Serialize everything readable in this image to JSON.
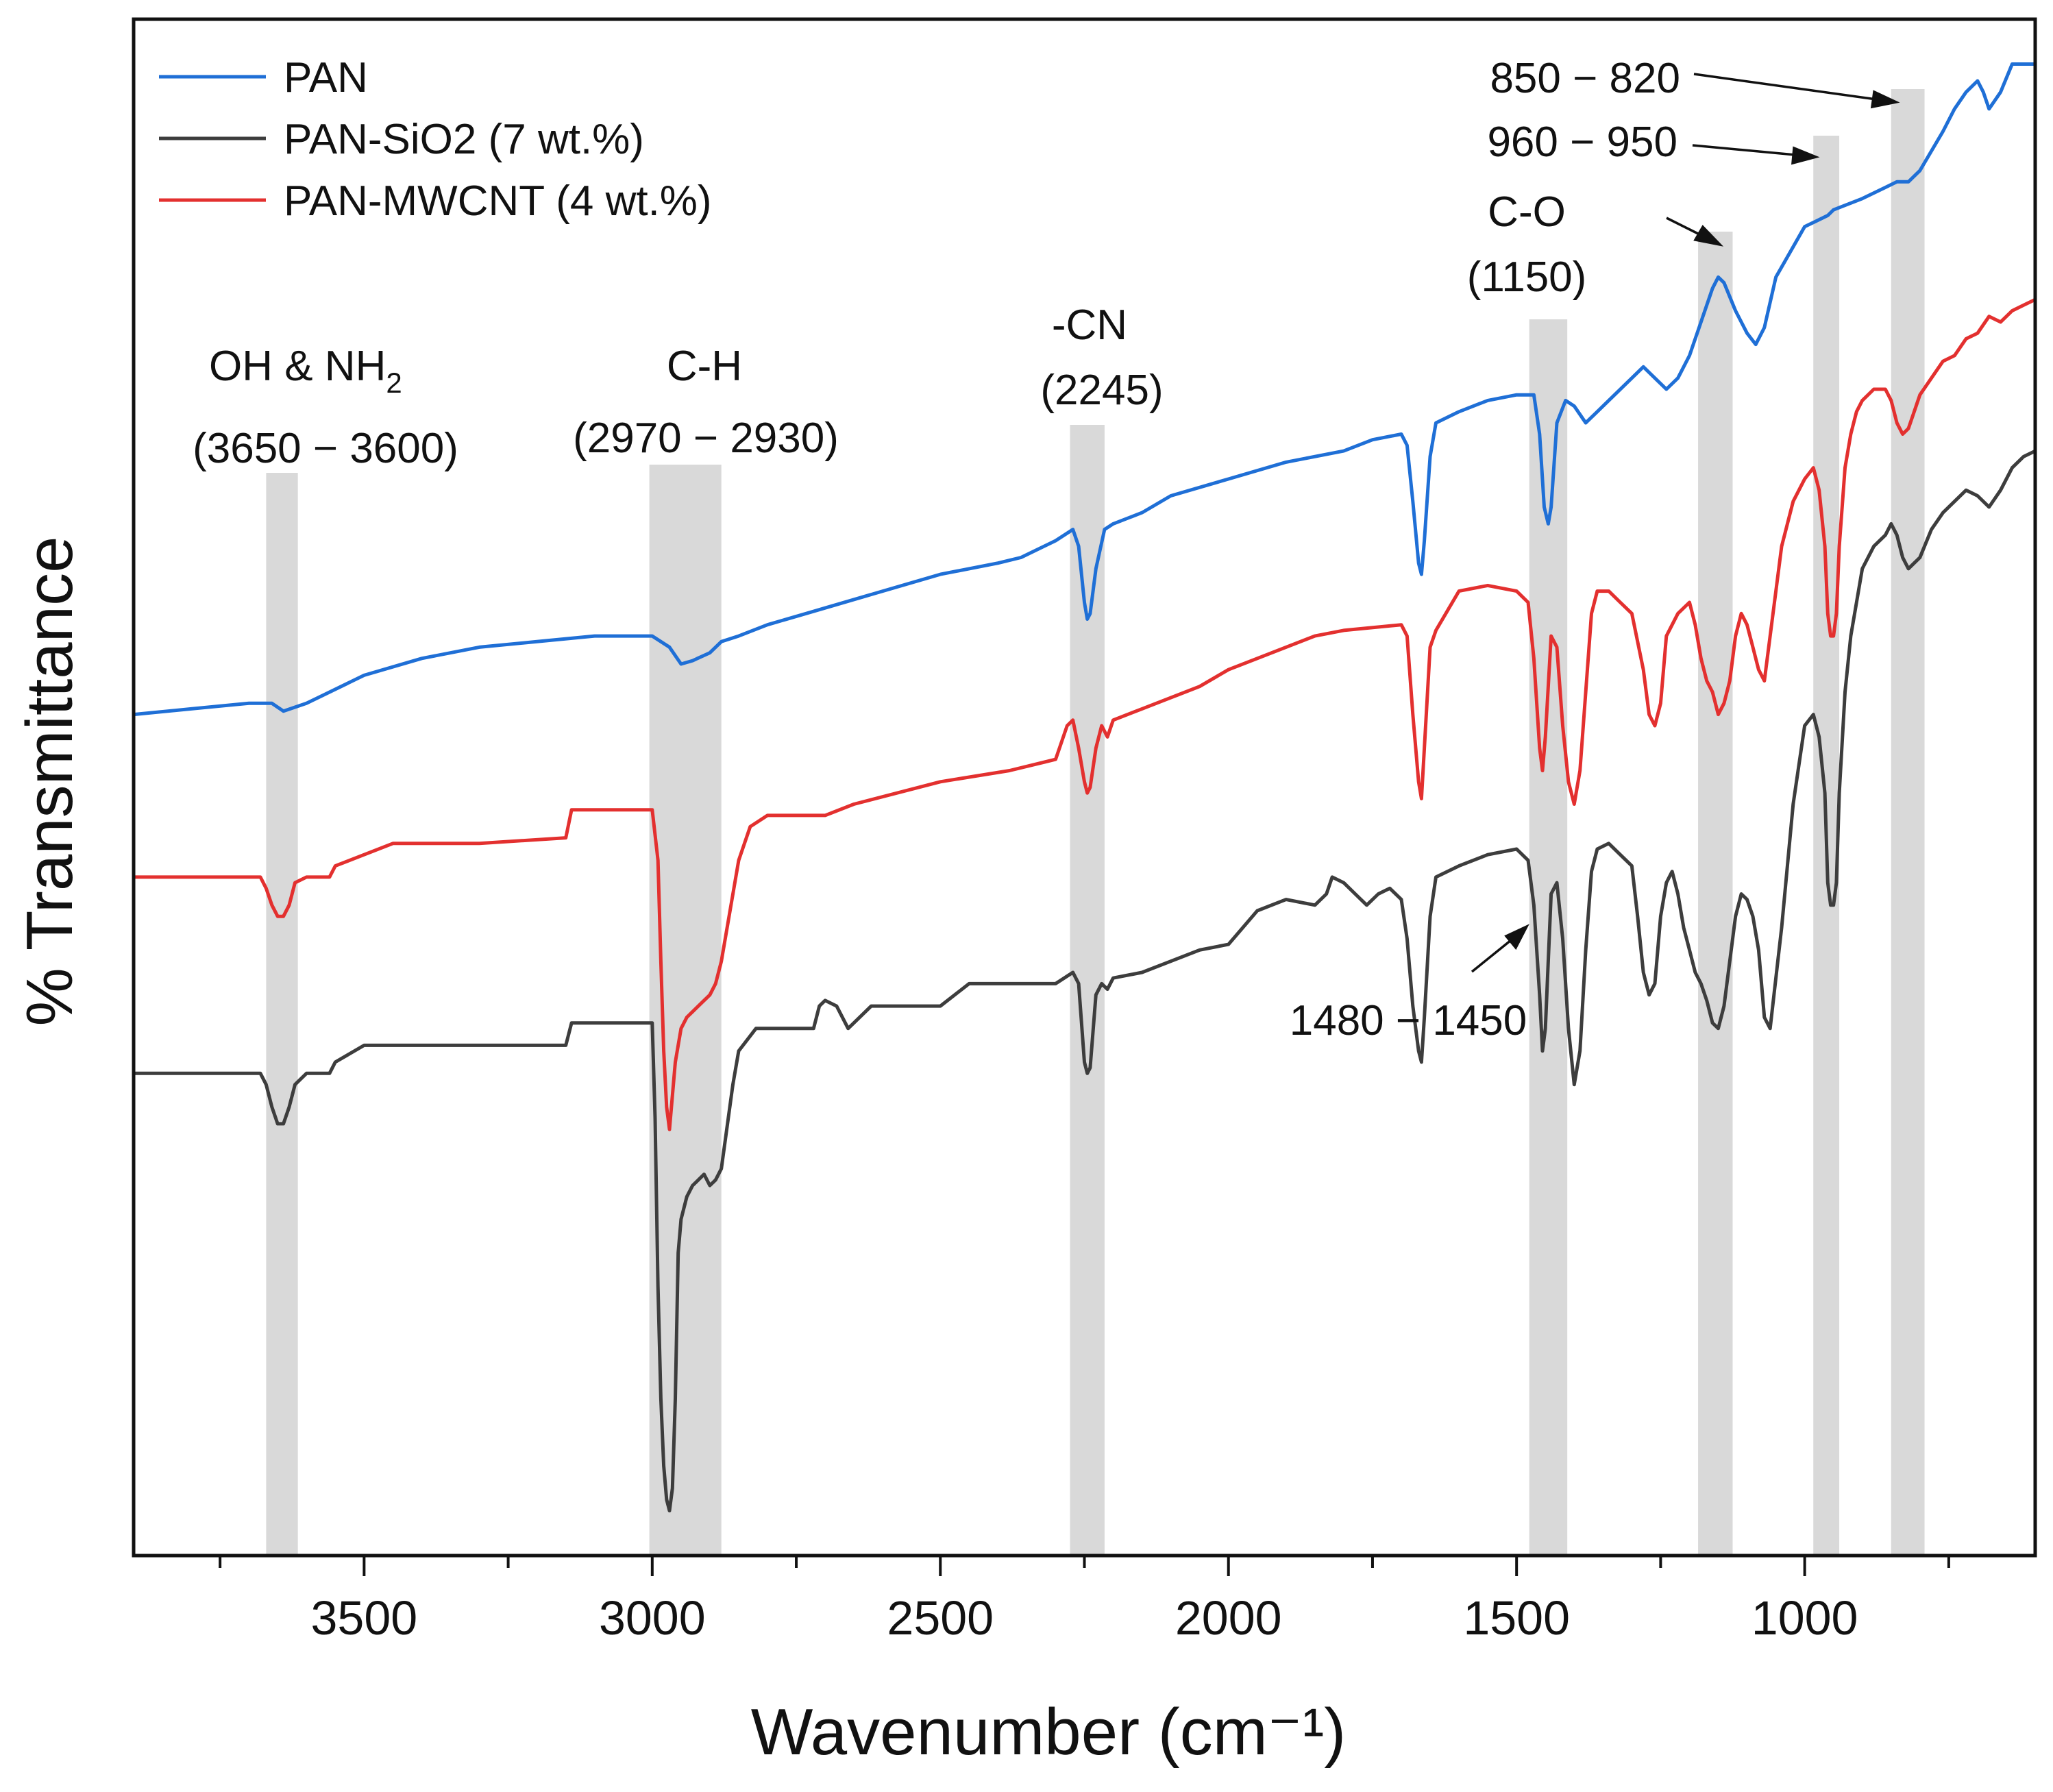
{
  "chart_data": {
    "type": "line",
    "xlabel": "Wavenumber (cm⁻¹)",
    "ylabel": "% Transmittance",
    "xlim": [
      3900,
      600
    ],
    "x_reversed": true,
    "x_ticks": [
      3500,
      3000,
      2500,
      2000,
      1500,
      1000
    ],
    "x_minor_step": 250,
    "y_ticks_shown": false,
    "grid": false,
    "legend_position": "top-left",
    "legend": [
      "PAN",
      "PAN-SiO2 (7 wt.%)",
      "PAN-MWCNT (4 wt.%)"
    ],
    "y_units": "relative % transmittance (stacked, arbitrary offset)",
    "bands": [
      {
        "id": "oh-nh2",
        "from": 3670,
        "to": 3615,
        "label_line1": "OH & NH",
        "label_sub": "2",
        "label_line2": "(3650 − 3600)"
      },
      {
        "id": "ch",
        "from": 3005,
        "to": 2880,
        "label_line1": "C-H",
        "label_line2": "(2970 − 2930)"
      },
      {
        "id": "cn",
        "from": 2275,
        "to": 2215,
        "label_line1": "-CN",
        "label_line2": "(2245)"
      },
      {
        "id": "b1465",
        "from": 1478,
        "to": 1412
      },
      {
        "id": "co",
        "from": 1185,
        "to": 1125,
        "label_line1": "C-O",
        "label_line2": "(1150)"
      },
      {
        "id": "b955",
        "from": 985,
        "to": 940,
        "label_line1": "960 − 950"
      },
      {
        "id": "b835",
        "from": 850,
        "to": 792,
        "label_line1": "850 − 820"
      },
      {
        "id": "b1480",
        "label_line1": "1480 − 1450"
      }
    ],
    "series": [
      {
        "name": "PAN",
        "color": "#1f6fd6",
        "x": [
          3900,
          3800,
          3700,
          3660,
          3640,
          3600,
          3500,
          3400,
          3300,
          3200,
          3100,
          3050,
          3000,
          2970,
          2950,
          2930,
          2900,
          2880,
          2850,
          2800,
          2700,
          2600,
          2500,
          2400,
          2360,
          2300,
          2270,
          2260,
          2250,
          2245,
          2240,
          2230,
          2215,
          2200,
          2150,
          2100,
          2000,
          1900,
          1800,
          1750,
          1700,
          1690,
          1680,
          1670,
          1665,
          1660,
          1650,
          1640,
          1600,
          1550,
          1500,
          1470,
          1460,
          1452,
          1445,
          1440,
          1430,
          1415,
          1400,
          1380,
          1360,
          1340,
          1300,
          1280,
          1260,
          1240,
          1220,
          1200,
          1180,
          1160,
          1150,
          1140,
          1120,
          1100,
          1085,
          1070,
          1050,
          1000,
          980,
          960,
          950,
          900,
          860,
          840,
          820,
          800,
          760,
          740,
          720,
          700,
          690,
          680,
          660,
          640,
          600
        ],
        "y": [
          3.0,
          3.5,
          4.0,
          4.0,
          3.3,
          4.0,
          6.5,
          8.0,
          9.0,
          9.5,
          10.0,
          10.0,
          10.0,
          9.0,
          7.5,
          7.8,
          8.5,
          9.5,
          10.0,
          11.0,
          12.5,
          14.0,
          15.5,
          16.5,
          17.0,
          18.5,
          19.5,
          18.0,
          13.0,
          11.5,
          12.0,
          16.0,
          19.5,
          20.0,
          21.0,
          22.5,
          24.0,
          25.5,
          26.5,
          27.5,
          28.0,
          27.0,
          22.0,
          16.5,
          15.5,
          18.5,
          26.0,
          29.0,
          30.0,
          31.0,
          31.5,
          31.5,
          28.0,
          21.5,
          20.0,
          21.5,
          29.0,
          31.0,
          30.5,
          29.0,
          30.0,
          31.0,
          33.0,
          34.0,
          33.0,
          32.0,
          33.0,
          35.0,
          38.0,
          41.0,
          42.0,
          41.5,
          39.0,
          37.0,
          36.0,
          37.5,
          42.0,
          46.5,
          47.0,
          47.5,
          48.0,
          49.0,
          50.0,
          50.5,
          50.5,
          51.5,
          55.0,
          57.0,
          58.5,
          59.5,
          58.5,
          57.0,
          58.5,
          61.0,
          61.0
        ]
      },
      {
        "name": "PAN-MWCNT (4 wt.%)",
        "color": "#e3302f",
        "x": [
          3900,
          3800,
          3700,
          3680,
          3670,
          3660,
          3650,
          3640,
          3630,
          3620,
          3600,
          3560,
          3550,
          3500,
          3450,
          3300,
          3150,
          3140,
          3000,
          2990,
          2985,
          2980,
          2975,
          2970,
          2960,
          2950,
          2940,
          2930,
          2920,
          2900,
          2890,
          2880,
          2850,
          2830,
          2800,
          2700,
          2650,
          2500,
          2380,
          2300,
          2280,
          2270,
          2260,
          2250,
          2245,
          2240,
          2230,
          2220,
          2210,
          2200,
          2150,
          2100,
          2050,
          2000,
          1950,
          1900,
          1850,
          1800,
          1700,
          1690,
          1680,
          1670,
          1665,
          1660,
          1650,
          1640,
          1600,
          1550,
          1500,
          1480,
          1470,
          1460,
          1455,
          1450,
          1440,
          1430,
          1420,
          1410,
          1400,
          1390,
          1380,
          1370,
          1360,
          1340,
          1320,
          1300,
          1280,
          1270,
          1260,
          1250,
          1240,
          1220,
          1200,
          1190,
          1180,
          1170,
          1160,
          1150,
          1140,
          1130,
          1120,
          1110,
          1100,
          1090,
          1080,
          1070,
          1060,
          1040,
          1020,
          1000,
          985,
          975,
          965,
          960,
          955,
          950,
          945,
          940,
          930,
          920,
          910,
          900,
          880,
          860,
          850,
          840,
          830,
          820,
          810,
          800,
          780,
          760,
          740,
          720,
          700,
          680,
          660,
          640,
          620,
          600
        ],
        "y": [
          -11.5,
          -11.5,
          -11.5,
          -11.5,
          -12.5,
          -14.0,
          -15.0,
          -15.0,
          -14.0,
          -12.0,
          -11.5,
          -11.5,
          -10.5,
          -9.5,
          -8.5,
          -8.5,
          -8.0,
          -5.5,
          -5.5,
          -10.0,
          -19.0,
          -27.0,
          -32.0,
          -34.0,
          -28.0,
          -25.0,
          -24.0,
          -23.5,
          -23.0,
          -22.0,
          -21.0,
          -19.0,
          -10.0,
          -7.0,
          -6.0,
          -6.0,
          -5.0,
          -3.0,
          -2.0,
          -1.0,
          2.0,
          2.5,
          0.0,
          -3.0,
          -4.0,
          -3.5,
          0.0,
          2.0,
          1.0,
          2.5,
          3.5,
          4.5,
          5.5,
          7.0,
          8.0,
          9.0,
          10.0,
          10.5,
          11.0,
          10.0,
          3.0,
          -3.0,
          -4.5,
          0.0,
          9.0,
          10.5,
          14.0,
          14.5,
          14.0,
          13.0,
          8.0,
          0.0,
          -2.0,
          1.0,
          10.0,
          9.0,
          2.0,
          -3.0,
          -5.0,
          -2.0,
          5.0,
          12.0,
          14.0,
          14.0,
          13.0,
          12.0,
          7.0,
          3.0,
          2.0,
          4.0,
          10.0,
          12.0,
          13.0,
          11.0,
          8.0,
          6.0,
          5.0,
          3.0,
          4.0,
          6.0,
          10.0,
          12.0,
          11.0,
          9.0,
          7.0,
          6.0,
          10.0,
          18.0,
          22.0,
          24.0,
          25.0,
          23.0,
          18.0,
          12.0,
          10.0,
          10.0,
          12.0,
          18.0,
          25.0,
          28.0,
          30.0,
          31.0,
          32.0,
          32.0,
          31.0,
          29.0,
          28.0,
          28.5,
          30.0,
          31.5,
          33.0,
          34.5,
          35.0,
          36.5,
          37.0,
          38.5,
          38.0,
          39.0,
          39.5,
          40.0
        ]
      },
      {
        "name": "PAN-SiO2 (7 wt.%)",
        "color": "#3d3d3d",
        "x": [
          3900,
          3800,
          3700,
          3680,
          3670,
          3660,
          3650,
          3640,
          3630,
          3620,
          3600,
          3560,
          3550,
          3500,
          3450,
          3300,
          3150,
          3140,
          3000,
          2995,
          2990,
          2985,
          2980,
          2975,
          2970,
          2965,
          2960,
          2955,
          2950,
          2940,
          2930,
          2920,
          2910,
          2900,
          2890,
          2880,
          2860,
          2850,
          2820,
          2800,
          2720,
          2710,
          2700,
          2680,
          2660,
          2650,
          2620,
          2500,
          2450,
          2300,
          2270,
          2260,
          2250,
          2245,
          2240,
          2230,
          2220,
          2210,
          2200,
          2150,
          2100,
          2050,
          2000,
          1950,
          1900,
          1850,
          1830,
          1820,
          1800,
          1780,
          1760,
          1740,
          1720,
          1700,
          1690,
          1680,
          1670,
          1665,
          1660,
          1650,
          1640,
          1600,
          1550,
          1500,
          1480,
          1470,
          1460,
          1455,
          1450,
          1440,
          1430,
          1420,
          1410,
          1400,
          1390,
          1380,
          1370,
          1360,
          1340,
          1320,
          1300,
          1290,
          1280,
          1270,
          1260,
          1250,
          1240,
          1230,
          1220,
          1210,
          1200,
          1190,
          1180,
          1170,
          1160,
          1150,
          1140,
          1130,
          1120,
          1110,
          1100,
          1090,
          1080,
          1070,
          1060,
          1040,
          1020,
          1000,
          985,
          975,
          965,
          960,
          955,
          950,
          945,
          940,
          930,
          920,
          910,
          900,
          880,
          860,
          850,
          840,
          830,
          820,
          810,
          800,
          780,
          760,
          740,
          720,
          700,
          680,
          660,
          640,
          620,
          600
        ],
        "y": [
          -29.0,
          -29.0,
          -29.0,
          -29.0,
          -30.0,
          -32.0,
          -33.5,
          -33.5,
          -32.0,
          -30.0,
          -29.0,
          -29.0,
          -28.0,
          -26.5,
          -26.5,
          -26.5,
          -26.5,
          -24.5,
          -24.5,
          -33.0,
          -48.0,
          -58.0,
          -64.0,
          -67.0,
          -68.0,
          -66.0,
          -58.0,
          -45.0,
          -42.0,
          -40.0,
          -39.0,
          -38.5,
          -38.0,
          -39.0,
          -38.5,
          -37.5,
          -30.0,
          -27.0,
          -25.0,
          -25.0,
          -25.0,
          -23.0,
          -22.5,
          -23.0,
          -25.0,
          -24.5,
          -23.0,
          -23.0,
          -21.0,
          -21.0,
          -20.0,
          -21.0,
          -28.0,
          -29.0,
          -28.5,
          -22.0,
          -21.0,
          -21.5,
          -20.5,
          -20.0,
          -19.0,
          -18.0,
          -17.5,
          -14.5,
          -13.5,
          -14.0,
          -13.0,
          -11.5,
          -12.0,
          -13.0,
          -14.0,
          -13.0,
          -12.5,
          -13.5,
          -17.0,
          -23.0,
          -27.0,
          -28.0,
          -24.0,
          -15.0,
          -11.5,
          -10.5,
          -9.5,
          -9.0,
          -10.0,
          -14.0,
          -22.0,
          -27.0,
          -25.0,
          -13.0,
          -12.0,
          -17.0,
          -25.0,
          -30.0,
          -27.0,
          -18.0,
          -11.0,
          -9.0,
          -8.5,
          -9.5,
          -10.5,
          -15.0,
          -20.0,
          -22.0,
          -21.0,
          -15.0,
          -12.0,
          -11.0,
          -13.0,
          -16.0,
          -18.0,
          -20.0,
          -21.0,
          -22.5,
          -24.5,
          -25.0,
          -23.0,
          -19.0,
          -15.0,
          -13.0,
          -13.5,
          -15.0,
          -18.0,
          -24.0,
          -25.0,
          -16.0,
          -5.0,
          2.0,
          3.0,
          1.0,
          -4.0,
          -12.0,
          -14.0,
          -14.0,
          -12.0,
          -4.0,
          5.0,
          10.0,
          13.0,
          16.0,
          18.0,
          19.0,
          20.0,
          19.0,
          17.0,
          16.0,
          16.5,
          17.0,
          19.5,
          21.0,
          22.0,
          23.0,
          22.5,
          21.5,
          23.0,
          25.0,
          26.0,
          26.5
        ]
      }
    ]
  }
}
